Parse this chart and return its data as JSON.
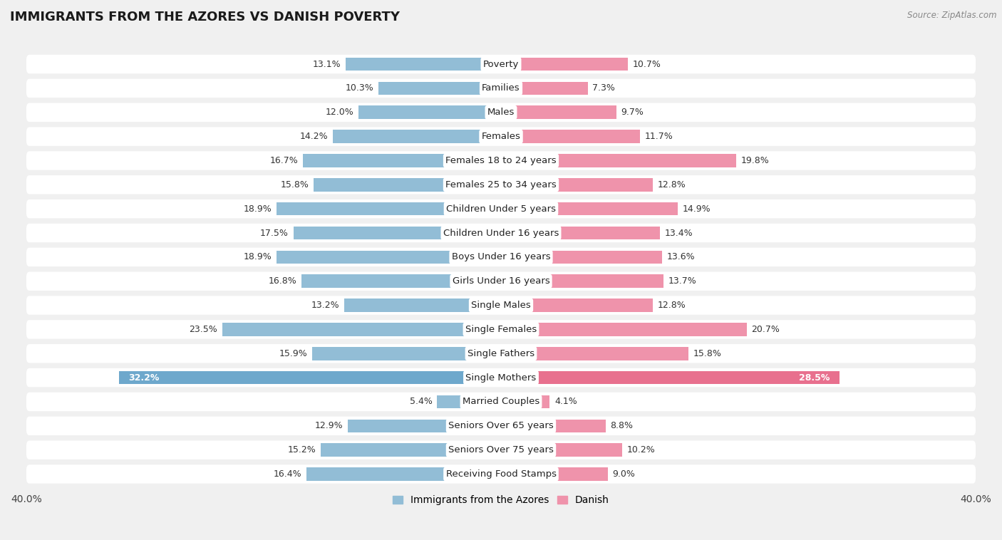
{
  "title": "IMMIGRANTS FROM THE AZORES VS DANISH POVERTY",
  "source": "Source: ZipAtlas.com",
  "categories": [
    "Poverty",
    "Families",
    "Males",
    "Females",
    "Females 18 to 24 years",
    "Females 25 to 34 years",
    "Children Under 5 years",
    "Children Under 16 years",
    "Boys Under 16 years",
    "Girls Under 16 years",
    "Single Males",
    "Single Females",
    "Single Fathers",
    "Single Mothers",
    "Married Couples",
    "Seniors Over 65 years",
    "Seniors Over 75 years",
    "Receiving Food Stamps"
  ],
  "azores_values": [
    13.1,
    10.3,
    12.0,
    14.2,
    16.7,
    15.8,
    18.9,
    17.5,
    18.9,
    16.8,
    13.2,
    23.5,
    15.9,
    32.2,
    5.4,
    12.9,
    15.2,
    16.4
  ],
  "danish_values": [
    10.7,
    7.3,
    9.7,
    11.7,
    19.8,
    12.8,
    14.9,
    13.4,
    13.6,
    13.7,
    12.8,
    20.7,
    15.8,
    28.5,
    4.1,
    8.8,
    10.2,
    9.0
  ],
  "azores_color": "#92BDD6",
  "danish_color": "#EF93AB",
  "single_mothers_azores_color": "#6EA8CC",
  "single_mothers_danish_color": "#E8708E",
  "azores_label": "Immigrants from the Azores",
  "danish_label": "Danish",
  "xlim": 40.0,
  "background_color": "#f0f0f0",
  "row_bg_color": "#ffffff",
  "title_fontsize": 13,
  "cat_fontsize": 9.5,
  "value_fontsize": 9,
  "legend_fontsize": 10
}
